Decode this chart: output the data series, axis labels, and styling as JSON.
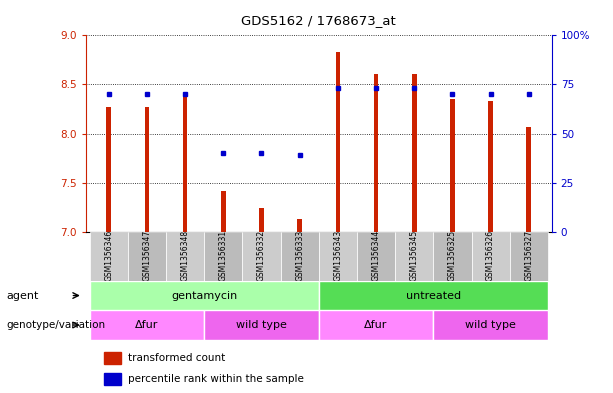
{
  "title": "GDS5162 / 1768673_at",
  "samples": [
    "GSM1356346",
    "GSM1356347",
    "GSM1356348",
    "GSM1356331",
    "GSM1356332",
    "GSM1356333",
    "GSM1356343",
    "GSM1356344",
    "GSM1356345",
    "GSM1356325",
    "GSM1356326",
    "GSM1356327"
  ],
  "transformed_count": [
    8.27,
    8.27,
    8.38,
    7.42,
    7.24,
    7.13,
    8.83,
    8.61,
    8.61,
    8.35,
    8.33,
    8.07
  ],
  "percentile_rank": [
    70,
    70,
    70,
    40,
    40,
    39,
    73,
    73,
    73,
    70,
    70,
    70
  ],
  "ylim_left": [
    7,
    9
  ],
  "ylim_right": [
    0,
    100
  ],
  "yticks_left": [
    7,
    7.5,
    8,
    8.5,
    9
  ],
  "yticks_right": [
    0,
    25,
    50,
    75,
    100
  ],
  "ytick_labels_right": [
    "0",
    "25",
    "50",
    "75",
    "100%"
  ],
  "bar_color": "#cc2200",
  "dot_color": "#0000cc",
  "bar_bottom": 7,
  "bar_width": 0.12,
  "agent_groups": [
    {
      "label": "gentamycin",
      "start": 0,
      "end": 6,
      "color": "#aaffaa"
    },
    {
      "label": "untreated",
      "start": 6,
      "end": 12,
      "color": "#55dd55"
    }
  ],
  "genotype_groups": [
    {
      "label": "Δfur",
      "start": 0,
      "end": 3,
      "color": "#ff88ff"
    },
    {
      "label": "wild type",
      "start": 3,
      "end": 6,
      "color": "#ee66ee"
    },
    {
      "label": "Δfur",
      "start": 6,
      "end": 9,
      "color": "#ff88ff"
    },
    {
      "label": "wild type",
      "start": 9,
      "end": 12,
      "color": "#ee66ee"
    }
  ],
  "legend_items": [
    {
      "label": "transformed count",
      "color": "#cc2200"
    },
    {
      "label": "percentile rank within the sample",
      "color": "#0000cc"
    }
  ],
  "label_row1": "agent",
  "label_row2": "genotype/variation"
}
